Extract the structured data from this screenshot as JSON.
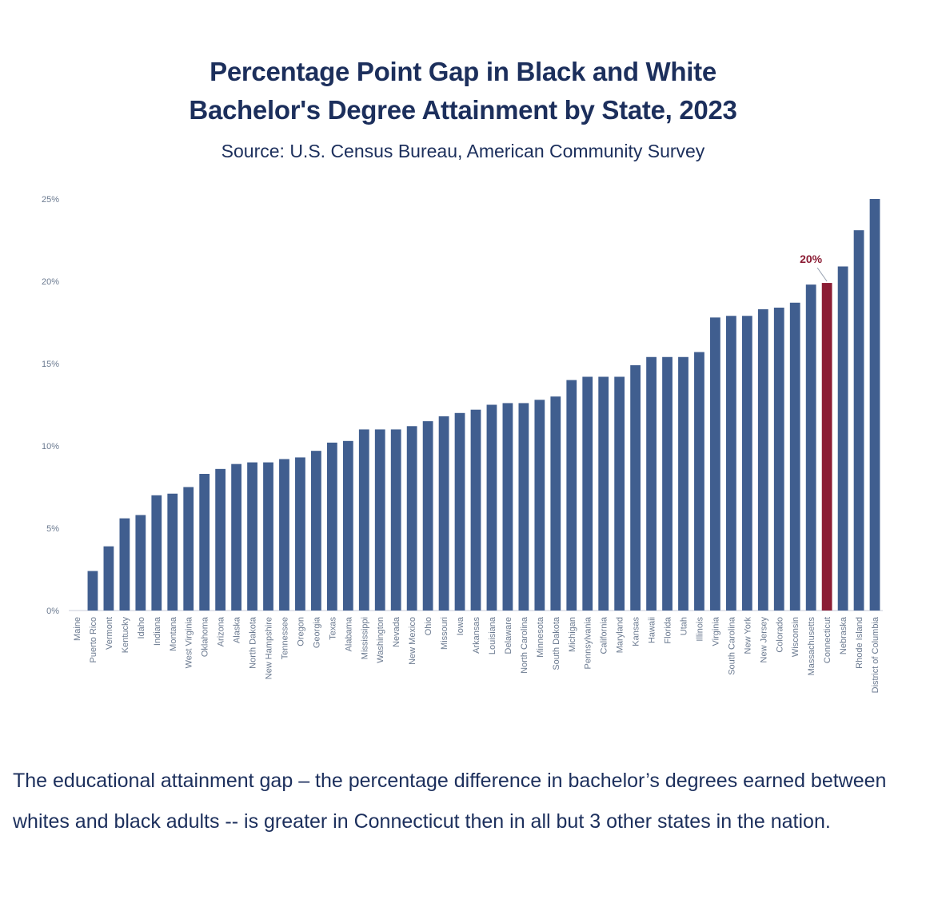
{
  "header": {
    "title_line1": "Percentage Point Gap in Black and White",
    "title_line2": "Bachelor's Degree Attainment by State, 2023",
    "subtitle": "Source: U.S. Census Bureau, American Community Survey"
  },
  "body_text": "The educational attainment gap – the percentage difference in bachelor’s degrees earned between whites and black adults -- is greater in Connecticut then in all but 3 other states in the nation.",
  "colors": {
    "bar": "#405e8f",
    "highlight": "#8b1c34",
    "text": "#1c2f5c",
    "axis_text": "#6b7a90"
  },
  "chart_data": {
    "type": "bar",
    "categories": [
      "Maine",
      "Puerto Rico",
      "Vermont",
      "Kentucky",
      "Idaho",
      "Indiana",
      "Montana",
      "West Virginia",
      "Oklahoma",
      "Arizona",
      "Alaska",
      "North Dakota",
      "New Hampshire",
      "Tennessee",
      "Oregon",
      "Georgia",
      "Texas",
      "Alabama",
      "Mississippi",
      "Washington",
      "Nevada",
      "New Mexico",
      "Ohio",
      "Missouri",
      "Iowa",
      "Arkansas",
      "Louisiana",
      "Delaware",
      "North Carolina",
      "Minnesota",
      "South Dakota",
      "Michigan",
      "Pennsylvania",
      "California",
      "Maryland",
      "Kansas",
      "Hawaii",
      "Florida",
      "Utah",
      "Illinois",
      "Virginia",
      "South Carolina",
      "New York",
      "New Jersey",
      "Colorado",
      "Wisconsin",
      "Massachusetts",
      "Connecticut",
      "Nebraska",
      "Rhode Island",
      "District of Columbia"
    ],
    "values": [
      0,
      2.4,
      3.9,
      5.6,
      5.8,
      7.0,
      7.1,
      7.5,
      8.3,
      8.6,
      8.9,
      9.0,
      9.0,
      9.2,
      9.3,
      9.7,
      10.2,
      10.3,
      11.0,
      11.0,
      11.0,
      11.2,
      11.5,
      11.8,
      12.0,
      12.2,
      12.5,
      12.6,
      12.6,
      12.8,
      13.0,
      14.0,
      14.2,
      14.2,
      14.2,
      14.9,
      15.4,
      15.4,
      15.4,
      15.7,
      17.8,
      17.9,
      17.9,
      18.3,
      18.4,
      18.7,
      19.8,
      19.9,
      20.9,
      23.1,
      25.0
    ],
    "yticks": [
      "0%",
      "5%",
      "10%",
      "15%",
      "20%",
      "25%"
    ],
    "ylim": [
      0,
      25
    ],
    "highlight": {
      "category": "Connecticut",
      "label": "20%"
    },
    "grid": false,
    "legend": "none"
  }
}
